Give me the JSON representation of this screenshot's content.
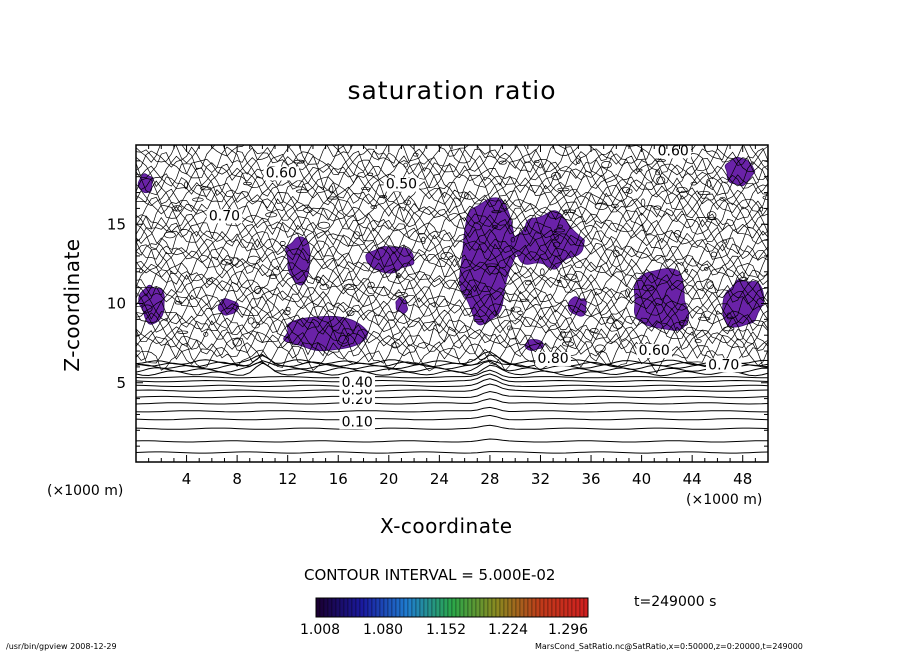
{
  "chart_data": {
    "type": "contour",
    "title": "saturation ratio",
    "xlabel": "X-coordinate",
    "ylabel": "Z-coordinate",
    "x_unit": "(×1000 m)",
    "xlim": [
      0,
      50
    ],
    "ylim": [
      0,
      20
    ],
    "x_ticks": [
      4,
      8,
      12,
      16,
      20,
      24,
      28,
      32,
      36,
      40,
      44,
      48
    ],
    "y_ticks": [
      5,
      10,
      15
    ],
    "contour_interval": "CONTOUR INTERVAL = 5.000E-02",
    "contour_labels": [
      {
        "text": "0.10",
        "x": 17.5,
        "z": 2.5
      },
      {
        "text": "0.20",
        "x": 17.5,
        "z": 3.9
      },
      {
        "text": "0.30",
        "x": 17.5,
        "z": 4.5
      },
      {
        "text": "0.40",
        "x": 17.5,
        "z": 5.0
      },
      {
        "text": "0.60",
        "x": 41.0,
        "z": 7.0
      },
      {
        "text": "0.70",
        "x": 46.5,
        "z": 6.1
      },
      {
        "text": "0.80",
        "x": 33.0,
        "z": 6.5
      },
      {
        "text": "0.50",
        "x": 21.0,
        "z": 17.5
      },
      {
        "text": "0.60",
        "x": 11.5,
        "z": 18.2
      },
      {
        "text": "0.70",
        "x": 7.0,
        "z": 15.5
      },
      {
        "text": "0.60",
        "x": 42.5,
        "z": 19.6
      }
    ],
    "supersaturated_regions": [
      {
        "xc": 0.8,
        "zc": 17.6,
        "rx": 0.6,
        "rz": 0.6
      },
      {
        "xc": 1.3,
        "zc": 10.0,
        "rx": 1.0,
        "rz": 1.2
      },
      {
        "xc": 7.2,
        "zc": 9.8,
        "rx": 0.8,
        "rz": 0.5
      },
      {
        "xc": 12.9,
        "zc": 12.8,
        "rx": 1.1,
        "rz": 1.5
      },
      {
        "xc": 15.1,
        "zc": 8.2,
        "rx": 3.5,
        "rz": 1.1
      },
      {
        "xc": 20.0,
        "zc": 12.8,
        "rx": 2.0,
        "rz": 0.8
      },
      {
        "xc": 21.0,
        "zc": 9.9,
        "rx": 0.5,
        "rz": 0.5
      },
      {
        "xc": 27.5,
        "zc": 13.0,
        "rx": 2.2,
        "rz": 4.3
      },
      {
        "xc": 32.5,
        "zc": 14.0,
        "rx": 2.6,
        "rz": 1.8
      },
      {
        "xc": 31.5,
        "zc": 7.4,
        "rx": 0.7,
        "rz": 0.4
      },
      {
        "xc": 35.0,
        "zc": 9.8,
        "rx": 0.7,
        "rz": 0.6
      },
      {
        "xc": 41.5,
        "zc": 10.2,
        "rx": 2.2,
        "rz": 2.1
      },
      {
        "xc": 48.0,
        "zc": 10.0,
        "rx": 1.6,
        "rz": 1.6
      },
      {
        "xc": 47.7,
        "zc": 18.3,
        "rx": 1.2,
        "rz": 0.9
      }
    ],
    "colorbar": {
      "labels": [
        "1.008",
        "1.080",
        "1.152",
        "1.224",
        "1.296"
      ],
      "range": [
        1.008,
        1.296
      ],
      "colors": [
        "#1a0033",
        "#1a1aa0",
        "#1f7dd0",
        "#2aa84a",
        "#8a8a20",
        "#c03a1a",
        "#d02020"
      ]
    },
    "time_label": "t=249000 s",
    "fill_color": "#6a22a8"
  },
  "footer": {
    "left": "/usr/bin/gpview   2008-12-29",
    "right": "MarsCond_SatRatio.nc@SatRatio,x=0:50000,z=0:20000,t=249000"
  }
}
